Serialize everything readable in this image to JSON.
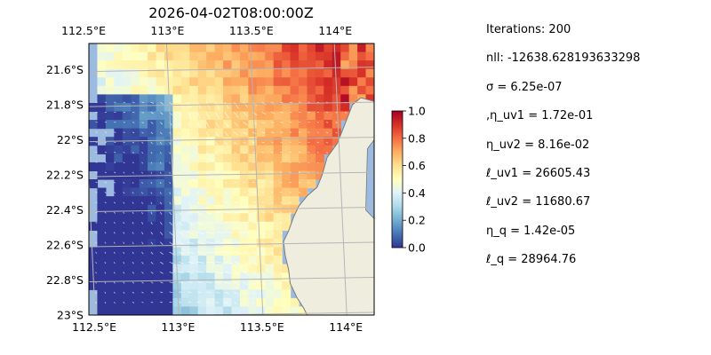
{
  "figure_title": "2026-04-02T08:00:00Z",
  "stats": [
    "Iterations: 200",
    "nll: -12638.628193633298",
    "σ = 6.25e-07",
    ",η_uv1 = 1.72e-01",
    "η_uv2 = 8.16e-02",
    "ℓ_uv1 = 26605.43",
    "ℓ_uv2 = 11680.67",
    "η_q = 1.42e-05",
    "ℓ_q = 28964.76"
  ],
  "colors": {
    "ocean": "#9dbbe0",
    "land": "#efedde",
    "coast": "#7a7a7a",
    "grid": "#b5b5b5",
    "colormap": [
      "#313695",
      "#4575b4",
      "#74add1",
      "#abd9e9",
      "#e0f3f8",
      "#ffffbf",
      "#fee090",
      "#fdae61",
      "#f46d43",
      "#d73027",
      "#a50026"
    ]
  },
  "chart_data": {
    "type": "heatmap",
    "xlabel": "",
    "ylabel": "",
    "xlim": [
      112.5,
      114.2
    ],
    "ylim": [
      -23.0,
      -21.45
    ],
    "x_ticks": [
      {
        "value": 112.5,
        "label": "112.5°E"
      },
      {
        "value": 113.0,
        "label": "113°E"
      },
      {
        "value": 113.5,
        "label": "113.5°E"
      },
      {
        "value": 114.0,
        "label": "114°E"
      }
    ],
    "y_ticks": [
      {
        "value": -21.6,
        "label": "21.6°S"
      },
      {
        "value": -21.8,
        "label": "21.8°S"
      },
      {
        "value": -22.0,
        "label": "22°S"
      },
      {
        "value": -22.2,
        "label": "22.2°S"
      },
      {
        "value": -22.4,
        "label": "22.4°S"
      },
      {
        "value": -22.6,
        "label": "22.6°S"
      },
      {
        "value": -22.8,
        "label": "22.8°S"
      },
      {
        "value": -23.0,
        "label": "23°S"
      }
    ],
    "colorbar": {
      "range": [
        0.0,
        1.0
      ],
      "ticks": [
        {
          "value": 0.0,
          "label": "0.0"
        },
        {
          "value": 0.2,
          "label": "0.2"
        },
        {
          "value": 0.4,
          "label": "0.4"
        },
        {
          "value": 0.6,
          "label": "0.6"
        },
        {
          "value": 0.8,
          "label": "0.8"
        },
        {
          "value": 1.0,
          "label": "1.0"
        }
      ]
    },
    "coastline": [
      [
        114.2,
        -21.78
      ],
      [
        114.12,
        -21.76
      ],
      [
        114.07,
        -21.8
      ],
      [
        114.03,
        -21.9
      ],
      [
        113.98,
        -22.02
      ],
      [
        113.92,
        -22.1
      ],
      [
        113.89,
        -22.2
      ],
      [
        113.86,
        -22.27
      ],
      [
        113.8,
        -22.32
      ],
      [
        113.75,
        -22.38
      ],
      [
        113.72,
        -22.44
      ],
      [
        113.69,
        -22.52
      ],
      [
        113.66,
        -22.58
      ],
      [
        113.67,
        -22.66
      ],
      [
        113.69,
        -22.74
      ],
      [
        113.7,
        -22.82
      ],
      [
        113.74,
        -22.9
      ],
      [
        113.78,
        -22.96
      ],
      [
        113.8,
        -23.0
      ]
    ],
    "grid": true
  }
}
